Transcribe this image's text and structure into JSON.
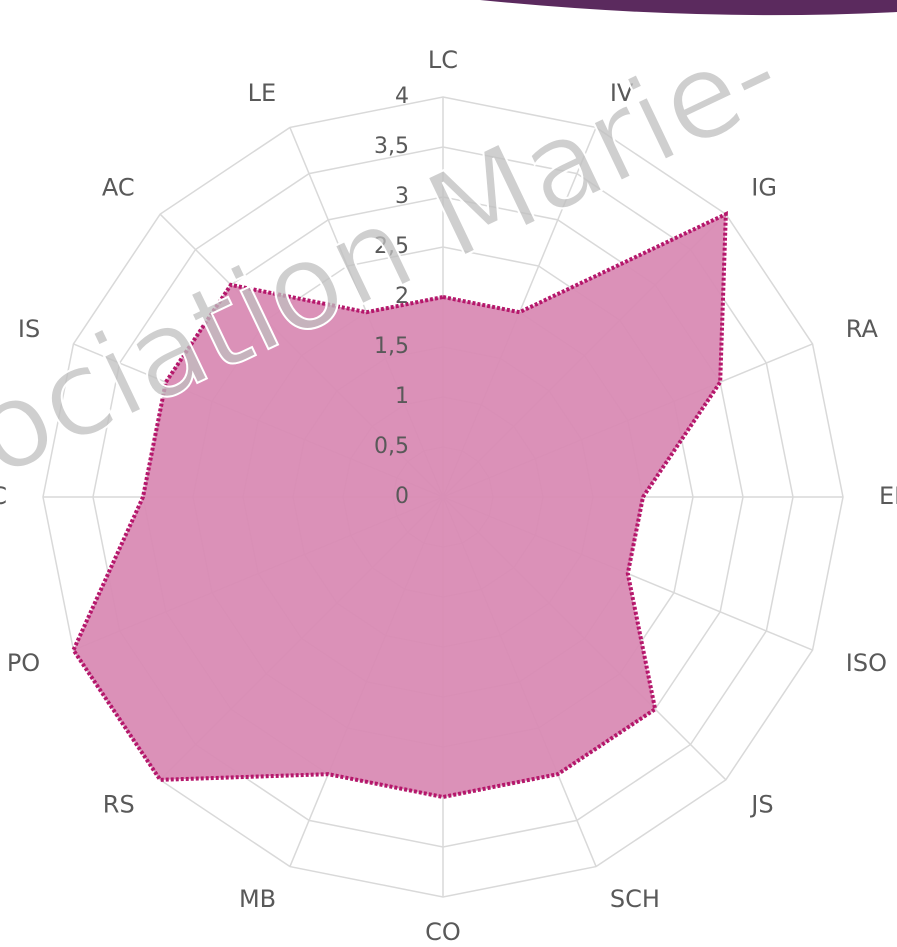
{
  "chart_data": {
    "type": "radar",
    "categories": [
      "LC",
      "IV",
      "IG",
      "RA",
      "EE",
      "ISO",
      "JS",
      "SCH",
      "CO",
      "MB",
      "RS",
      "PO",
      "RC",
      "IS",
      "AC",
      "LE"
    ],
    "values": [
      2,
      2,
      4,
      3,
      2,
      2,
      3,
      3,
      3,
      3,
      4,
      4,
      3,
      3,
      3,
      2
    ],
    "color": "#d98bb4",
    "line_color": "#b5176b",
    "ylim": [
      0,
      4
    ],
    "yticks": [
      0,
      {
        "value": 0.5,
        "label": "0,5"
      },
      1,
      {
        "value": 1.5,
        "label": "1,5"
      },
      2,
      {
        "value": 2.5,
        "label": "2,5"
      },
      3,
      {
        "value": 3.5,
        "label": "3,5"
      },
      4
    ],
    "grid": true,
    "watermark": "ociation Marie-"
  }
}
